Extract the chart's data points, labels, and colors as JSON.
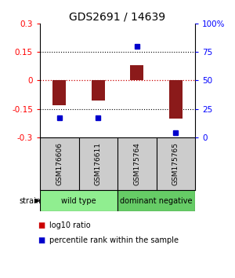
{
  "title": "GDS2691 / 14639",
  "samples": [
    "GSM176606",
    "GSM176611",
    "GSM175764",
    "GSM175765"
  ],
  "log10_ratio": [
    -0.13,
    -0.105,
    0.08,
    -0.2
  ],
  "percentile": [
    17,
    17,
    80,
    4
  ],
  "bar_color": "#8B1A1A",
  "dot_color": "#0000CC",
  "ylim_left": [
    -0.3,
    0.3
  ],
  "ylim_right": [
    0,
    100
  ],
  "yticks_left": [
    -0.3,
    -0.15,
    0.0,
    0.15,
    0.3
  ],
  "yticks_right": [
    0,
    25,
    50,
    75,
    100
  ],
  "ytick_labels_right": [
    "0",
    "25",
    "50",
    "75",
    "100%"
  ],
  "groups": [
    {
      "label": "wild type",
      "indices": [
        0,
        1
      ],
      "color": "#90EE90"
    },
    {
      "label": "dominant negative",
      "indices": [
        2,
        3
      ],
      "color": "#66CC66"
    }
  ],
  "legend_items": [
    {
      "color": "#CC0000",
      "label": "log10 ratio"
    },
    {
      "color": "#0000CC",
      "label": "percentile rank within the sample"
    }
  ],
  "background_color": "#ffffff",
  "hline_zero_color": "#CC0000",
  "dotted_line_color": "#000000",
  "sample_bg_color": "#cccccc",
  "title_fontsize": 10,
  "bar_width": 0.35
}
